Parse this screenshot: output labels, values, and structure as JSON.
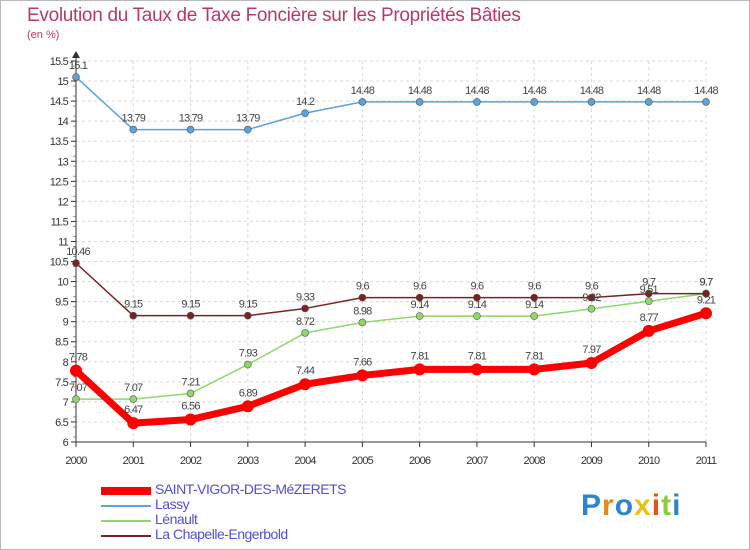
{
  "title": "Evolution du Taux de Taxe Foncière sur les Propriétés Bâties",
  "ylabel": "(en %)",
  "logo": "Proxiti",
  "colors": {
    "title": "#b8386e",
    "axis": "#333333",
    "grid": "#d8d8d8",
    "legend_text": "#5050d0"
  },
  "chart_data": {
    "type": "line",
    "title": "Evolution du Taux de Taxe Foncière sur les Propriétés Bâties",
    "ylabel": "(en %)",
    "xlabel": "",
    "x": [
      "2000",
      "2001",
      "2002",
      "2003",
      "2004",
      "2005",
      "2006",
      "2007",
      "2008",
      "2009",
      "2010",
      "2011"
    ],
    "ylim": [
      6,
      15.5
    ],
    "yticks": [
      "6",
      "6.5",
      "7",
      "7.5",
      "8",
      "8.5",
      "9",
      "9.5",
      "10",
      "10.5",
      "11",
      "11.5",
      "12",
      "12.5",
      "13",
      "13.5",
      "14",
      "14.5",
      "15",
      "15.5"
    ],
    "grid": true,
    "series": [
      {
        "name": "SAINT-VIGOR-DES-MéZERETS",
        "color": "#ff0000",
        "values": [
          7.78,
          6.47,
          6.56,
          6.89,
          7.44,
          7.66,
          7.81,
          7.81,
          7.81,
          7.97,
          8.77,
          9.21
        ],
        "labels": [
          "7.78",
          "6.47",
          "6.56",
          "6.89",
          "7.44",
          "7.66",
          "7.81",
          "7.81",
          "7.81",
          "7.97",
          "8.77",
          "9.21"
        ]
      },
      {
        "name": "Lassy",
        "color": "#5ba3d9",
        "values": [
          15.1,
          13.79,
          13.79,
          13.79,
          14.2,
          14.48,
          14.48,
          14.48,
          14.48,
          14.48,
          14.48,
          14.48
        ],
        "labels": [
          "15.1",
          "13.79",
          "13.79",
          "13.79",
          "14.2",
          "14.48",
          "14.48",
          "14.48",
          "14.48",
          "14.48",
          "14.48",
          "14.48"
        ]
      },
      {
        "name": "Lénault",
        "color": "#8fd86a",
        "values": [
          7.07,
          7.07,
          7.21,
          7.93,
          8.72,
          8.98,
          9.14,
          9.14,
          9.14,
          9.32,
          9.51,
          9.7
        ],
        "labels": [
          "7.07",
          "7.07",
          "7.21",
          "7.93",
          "8.72",
          "8.98",
          "9.14",
          "9.14",
          "9.14",
          "9.32",
          "9.51",
          "9.7"
        ]
      },
      {
        "name": "La Chapelle-Engerbold",
        "color": "#7a2222",
        "values": [
          10.46,
          9.15,
          9.15,
          9.15,
          9.33,
          9.6,
          9.6,
          9.6,
          9.6,
          9.6,
          9.7,
          9.7
        ],
        "labels": [
          "10.46",
          "9.15",
          "9.15",
          "9.15",
          "9.33",
          "9.6",
          "9.6",
          "9.6",
          "9.6",
          "9.6",
          "9.7",
          "9.7"
        ]
      }
    ],
    "legend": [
      "SAINT-VIGOR-DES-MéZERETS",
      "Lassy",
      "Lénault",
      "La Chapelle-Engerbold"
    ],
    "legend_position": "bottom-left"
  }
}
